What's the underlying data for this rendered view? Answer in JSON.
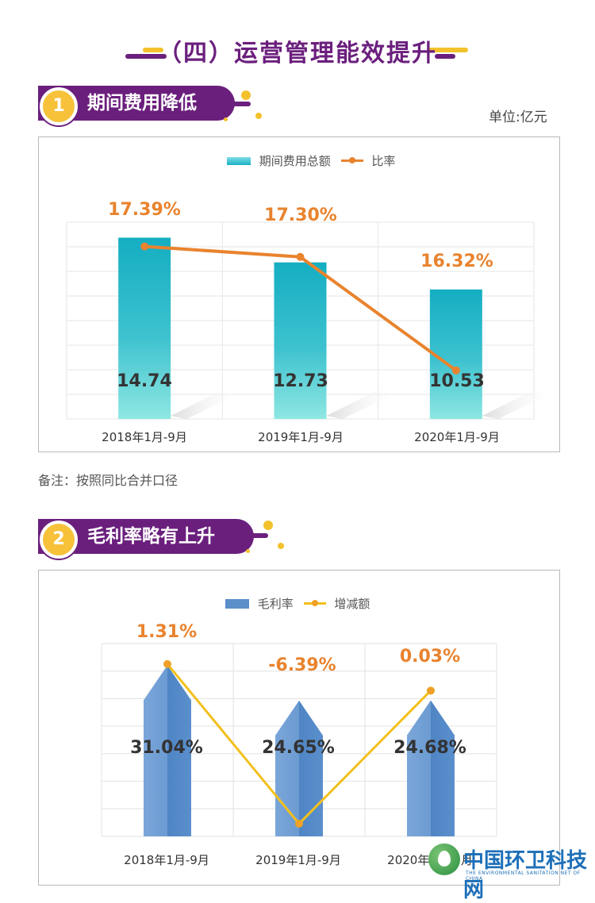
{
  "page_title": "（四）运营管理能效提升",
  "unit_label": "单位:亿元",
  "note": "备注：按照同比合并口径",
  "watermark": {
    "name": "中国环卫科技网",
    "sub": "THE ENVIRONMENTAL SANITATION NET OF CHINA"
  },
  "colors": {
    "brand_purple": "#6b1f7d",
    "accent_yellow": "#f3c12b",
    "bar_teal": "#1ab0c3",
    "line_orange": "#e9832e",
    "bar_blue": "#5b8fc9",
    "line_yellow": "#f2c01d"
  },
  "sections": [
    {
      "number": "1",
      "title": "期间费用降低",
      "legend": {
        "bar": "期间费用总额",
        "line": "比率"
      }
    },
    {
      "number": "2",
      "title": "毛利率略有上升",
      "legend": {
        "bar": "毛利率",
        "line": "增减额"
      }
    }
  ],
  "chart_data": [
    {
      "type": "bar",
      "categories": [
        "2018年1月-9月",
        "2019年1月-9月",
        "2020年1月-9月"
      ],
      "series": [
        {
          "name": "期间费用总额",
          "type": "bar",
          "values": [
            14.74,
            12.73,
            10.53
          ],
          "labels": [
            "14.74",
            "12.73",
            "10.53"
          ]
        },
        {
          "name": "比率",
          "type": "line",
          "values": [
            17.39,
            17.3,
            16.32
          ],
          "labels": [
            "17.39%",
            "17.30%",
            "16.32%"
          ]
        }
      ],
      "grid": true,
      "legend": "top-center"
    },
    {
      "type": "bar",
      "categories": [
        "2018年1月-9月",
        "2019年1月-9月",
        "2020年1月-9月"
      ],
      "series": [
        {
          "name": "毛利率",
          "type": "bar",
          "values": [
            31.04,
            24.65,
            24.68
          ],
          "labels": [
            "31.04%",
            "24.65%",
            "24.68%"
          ]
        },
        {
          "name": "增减额",
          "type": "line",
          "values": [
            1.31,
            -6.39,
            0.03
          ],
          "labels": [
            "1.31%",
            "-6.39%",
            "0.03%"
          ]
        }
      ],
      "grid": true,
      "legend": "top-center"
    }
  ]
}
